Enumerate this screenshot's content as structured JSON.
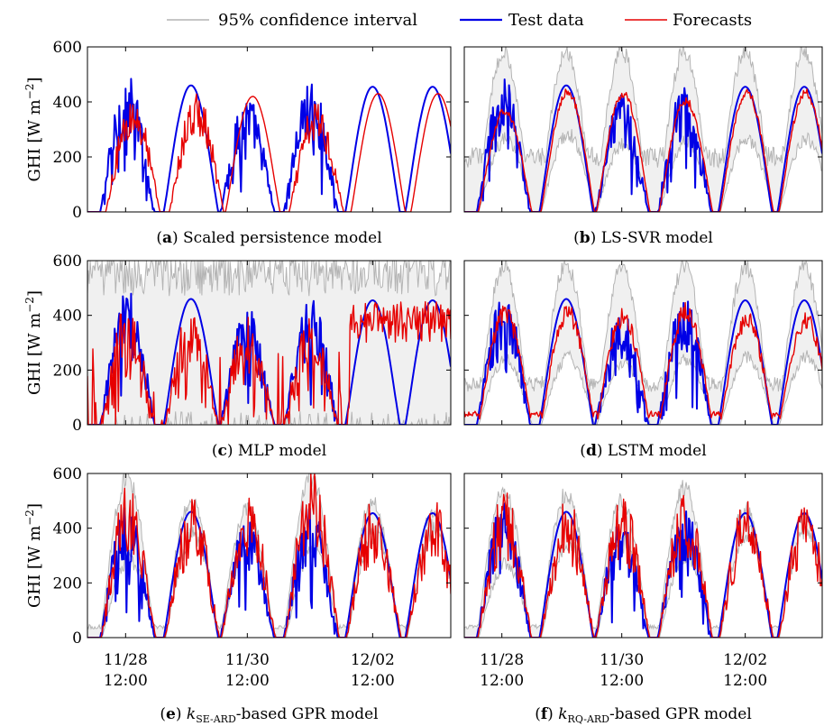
{
  "legend": {
    "ci_label": "95% confidence interval",
    "test_label": "Test data",
    "forecast_label": "Forecasts"
  },
  "colors": {
    "ci": "#b4b4b4",
    "ci_fill": "#f0f0f0",
    "test": "#0000e6",
    "forecast": "#e60000"
  },
  "y_axis_label": "GHI [W m−2]",
  "chart_data": [
    {
      "type": "line",
      "panel": "a",
      "caption_prefix": "(",
      "caption_letter": "a",
      "caption_text": ") Scaled persistence model",
      "ylim": [
        0,
        600
      ],
      "yticks": [
        0,
        200,
        400,
        600
      ],
      "has_ci": false,
      "forecast_style": "persistence",
      "forecast_noise": 0.55,
      "series": [
        {
          "name": "Test data",
          "day_peaks": [
            500,
            460,
            430,
            480,
            455,
            455
          ]
        },
        {
          "name": "Forecasts",
          "day_peaks": [
            430,
            440,
            420,
            410,
            430,
            430
          ]
        }
      ]
    },
    {
      "type": "line",
      "panel": "b",
      "caption_prefix": "(",
      "caption_letter": "b",
      "caption_text": ") LS-SVR model",
      "ylim": [
        0,
        600
      ],
      "yticks": [
        0,
        200,
        400,
        600
      ],
      "has_ci": true,
      "ci_upper_peaks": [
        600,
        600,
        600,
        600,
        600,
        600
      ],
      "ci_lower_peaks": [
        280,
        300,
        260,
        270,
        280,
        280
      ],
      "ci_night_upper": 200,
      "forecast_style": "smooth",
      "forecast_noise": 0.15,
      "series": [
        {
          "name": "Test data",
          "day_peaks": [
            500,
            460,
            430,
            480,
            455,
            455
          ]
        },
        {
          "name": "Forecasts",
          "day_peaks": [
            380,
            455,
            445,
            420,
            450,
            450
          ]
        }
      ]
    },
    {
      "type": "line",
      "panel": "c",
      "caption_prefix": "(",
      "caption_letter": "c",
      "caption_text": ") MLP model",
      "ylim": [
        0,
        600
      ],
      "yticks": [
        0,
        200,
        400,
        600
      ],
      "has_ci": true,
      "ci_full": true,
      "forecast_style": "erratic",
      "forecast_noise": 0.9,
      "series": [
        {
          "name": "Test data",
          "day_peaks": [
            500,
            460,
            430,
            480,
            455,
            455
          ]
        },
        {
          "name": "Forecasts",
          "day_peaks": [
            450,
            440,
            400,
            420,
            430,
            420
          ]
        }
      ]
    },
    {
      "type": "line",
      "panel": "d",
      "caption_prefix": "(",
      "caption_letter": "d",
      "caption_text": ") LSTM model",
      "ylim": [
        0,
        600
      ],
      "yticks": [
        0,
        200,
        400,
        600
      ],
      "has_ci": true,
      "ci_upper_peaks": [
        590,
        600,
        580,
        590,
        590,
        590
      ],
      "ci_lower_peaks": [
        250,
        260,
        240,
        250,
        260,
        260
      ],
      "ci_night_upper": 150,
      "forecast_style": "smooth",
      "forecast_noise": 0.35,
      "series": [
        {
          "name": "Test data",
          "day_peaks": [
            500,
            460,
            430,
            480,
            455,
            455
          ]
        },
        {
          "name": "Forecasts",
          "day_peaks": [
            440,
            450,
            430,
            450,
            420,
            420
          ]
        }
      ]
    },
    {
      "type": "line",
      "panel": "e",
      "caption_prefix": "(",
      "caption_letter": "e",
      "caption_text": "-based GPR model",
      "caption_k": "k",
      "caption_sub": "SE-ARD",
      "ylim": [
        0,
        600
      ],
      "yticks": [
        0,
        200,
        400,
        600
      ],
      "has_ci": true,
      "ci_upper_peaks": [
        600,
        510,
        480,
        600,
        510,
        460
      ],
      "ci_lower_peaks": [
        300,
        390,
        380,
        330,
        400,
        420
      ],
      "ci_night_upper": 40,
      "forecast_style": "noisy",
      "forecast_noise": 0.7,
      "series": [
        {
          "name": "Test data",
          "day_peaks": [
            500,
            460,
            430,
            480,
            455,
            455
          ]
        },
        {
          "name": "Forecasts",
          "day_peaks": [
            490,
            450,
            460,
            560,
            450,
            440
          ]
        }
      ]
    },
    {
      "type": "line",
      "panel": "f",
      "caption_prefix": "(",
      "caption_letter": "f",
      "caption_text": "-based GPR model",
      "caption_k": "k",
      "caption_sub": "RQ-ARD",
      "ylim": [
        0,
        600
      ],
      "yticks": [
        0,
        200,
        400,
        600
      ],
      "has_ci": true,
      "ci_upper_peaks": [
        560,
        540,
        510,
        560,
        480,
        460
      ],
      "ci_lower_peaks": [
        280,
        370,
        360,
        320,
        410,
        420
      ],
      "ci_night_upper": 40,
      "forecast_style": "noisy",
      "forecast_noise": 0.6,
      "series": [
        {
          "name": "Test data",
          "day_peaks": [
            500,
            460,
            430,
            480,
            455,
            455
          ]
        },
        {
          "name": "Forecasts",
          "day_peaks": [
            470,
            450,
            450,
            470,
            450,
            440
          ]
        }
      ]
    }
  ],
  "x_tick_labels": [
    {
      "date": "11/28",
      "time": "12:00"
    },
    {
      "date": "11/30",
      "time": "12:00"
    },
    {
      "date": "12/02",
      "time": "12:00"
    }
  ]
}
